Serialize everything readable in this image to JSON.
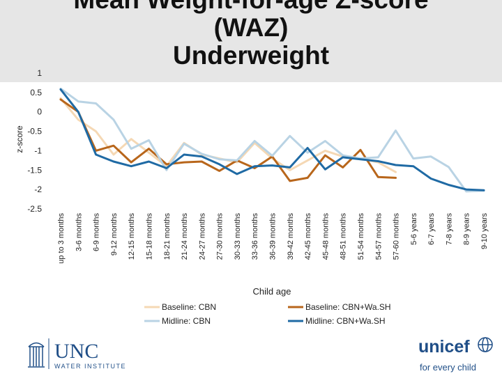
{
  "title_lines": [
    "Mean Weight-for-age Z-score",
    "(WAZ)",
    "Underweight"
  ],
  "chart_data": {
    "type": "line",
    "ylabel": "z-score",
    "xlabel": "Child age",
    "ylim": [
      -2.5,
      1
    ],
    "yticks": [
      1,
      0.5,
      0,
      -0.5,
      -1,
      -1.5,
      -2,
      -2.5
    ],
    "yticklabels": [
      "1",
      "0.5",
      "0",
      "-0.5",
      "-1",
      "-1.5",
      "-2",
      "-2.5"
    ],
    "categories": [
      "up to 3 months",
      "3-6 months",
      "6-9 months",
      "9-12 months",
      "12-15 months",
      "15-18 months",
      "18-21 months",
      "21-24 months",
      "24-27 months",
      "27-30 months",
      "30-33 months",
      "33-36 months",
      "36-39 months",
      "39-42 months",
      "42-45 months",
      "45-48 months",
      "48-51 months",
      "51-54 months",
      "54-57 months",
      "57-60 months",
      "5-6 years",
      "6-7 years",
      "7-8 years",
      "8-9 years",
      "9-10 years"
    ],
    "series": [
      {
        "name": "Baseline: CBN",
        "color": "#f5d8b4",
        "width": 3,
        "values": [
          0.35,
          -0.2,
          -0.5,
          -1.1,
          -0.7,
          -1.05,
          -1.4,
          -0.8,
          -1.1,
          -1.2,
          -1.3,
          -0.8,
          -1.2,
          -1.5,
          -1.25,
          -1.0,
          -1.15,
          -1.2,
          -1.3,
          -1.55,
          null,
          null,
          null,
          null,
          null
        ]
      },
      {
        "name": "Baseline: CBN+Wa.SH",
        "color": "#b8661b",
        "width": 3,
        "values": [
          0.32,
          0.0,
          -1.0,
          -0.87,
          -1.3,
          -0.95,
          -1.35,
          -1.3,
          -1.28,
          -1.52,
          -1.25,
          -1.45,
          -1.15,
          -1.78,
          -1.7,
          -1.12,
          -1.43,
          -0.98,
          -1.68,
          -1.7,
          null,
          null,
          null,
          null,
          null
        ]
      },
      {
        "name": "Midline: CBN",
        "color": "#b9d3e4",
        "width": 3,
        "values": [
          0.6,
          0.27,
          0.22,
          -0.2,
          -0.95,
          -0.73,
          -1.5,
          -0.82,
          -1.08,
          -1.22,
          -1.25,
          -0.75,
          -1.13,
          -0.62,
          -1.05,
          -0.75,
          -1.12,
          -1.2,
          -1.17,
          -0.48,
          -1.2,
          -1.15,
          -1.42,
          -2.05,
          -2.03
        ]
      },
      {
        "name": "Midline: CBN+Wa.SH",
        "color": "#1f6aa4",
        "width": 3,
        "values": [
          0.58,
          0.0,
          -1.1,
          -1.28,
          -1.4,
          -1.28,
          -1.45,
          -1.1,
          -1.15,
          -1.35,
          -1.6,
          -1.4,
          -1.38,
          -1.43,
          -0.93,
          -1.48,
          -1.17,
          -1.22,
          -1.27,
          -1.37,
          -1.4,
          -1.72,
          -1.88,
          -2.0,
          -2.02
        ]
      }
    ],
    "legend": {
      "placement": "bottom",
      "order": [
        "Baseline: CBN",
        "Baseline: CBN+Wa.SH",
        "Midline: CBN",
        "Midline: CBN+Wa.SH"
      ]
    }
  },
  "logos": {
    "unc": {
      "line1": "UNC",
      "line2": "WATER INSTITUTE",
      "color": "#1f4e87"
    },
    "unicef": {
      "line1": "unicef",
      "line2": "for every child",
      "color": "#1f4e87"
    }
  }
}
